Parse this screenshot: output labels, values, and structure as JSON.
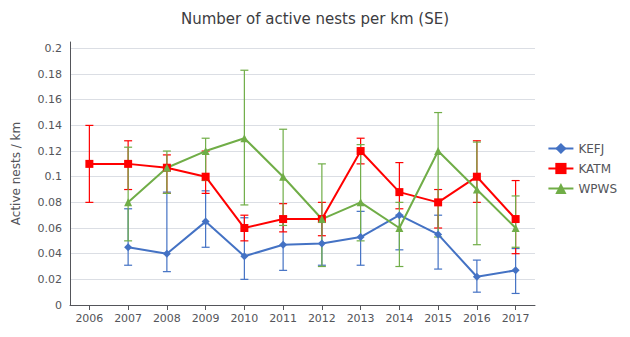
{
  "chart_data": {
    "type": "line",
    "title": "Number of active nests per km (SE)",
    "ylabel": "Active nests / km",
    "x": [
      2006,
      2007,
      2008,
      2009,
      2010,
      2011,
      2012,
      2013,
      2014,
      2015,
      2016,
      2017
    ],
    "xlim": [
      2005.5,
      2017.5
    ],
    "xticks": [
      2006,
      2007,
      2008,
      2009,
      2010,
      2011,
      2012,
      2013,
      2014,
      2015,
      2016,
      2017
    ],
    "ylim": [
      0,
      0.205
    ],
    "yticks": [
      0,
      0.02,
      0.04,
      0.06,
      0.08,
      0.1,
      0.12,
      0.14,
      0.16,
      0.18,
      0.2
    ],
    "grid": true,
    "legend": "right",
    "series": [
      {
        "name": "KEFJ",
        "color": "#4472C4",
        "marker": "diamond",
        "values": [
          null,
          0.045,
          0.04,
          0.065,
          0.038,
          0.047,
          0.048,
          0.053,
          0.07,
          0.055,
          0.022,
          0.027
        ],
        "err_lo": [
          null,
          0.014,
          0.014,
          0.02,
          0.018,
          0.02,
          0.017,
          0.022,
          0.027,
          0.027,
          0.012,
          0.018
        ],
        "err_hi": [
          null,
          0.03,
          0.048,
          0.024,
          0.03,
          0.022,
          0.02,
          0.02,
          0.0,
          0.015,
          0.013,
          0.017
        ]
      },
      {
        "name": "KATM",
        "color": "#FF0000",
        "marker": "square",
        "values": [
          0.11,
          0.11,
          0.107,
          0.1,
          0.06,
          0.067,
          0.067,
          0.12,
          0.088,
          0.08,
          0.1,
          0.067
        ],
        "err_lo": [
          0.03,
          0.02,
          0.02,
          0.013,
          0.01,
          0.01,
          0.013,
          0.01,
          0.013,
          0.02,
          0.02,
          0.027
        ],
        "err_hi": [
          0.03,
          0.018,
          0.01,
          0.02,
          0.01,
          0.012,
          0.013,
          0.01,
          0.023,
          0.01,
          0.028,
          0.03
        ]
      },
      {
        "name": "WPWS",
        "color": "#70AD47",
        "marker": "triangle",
        "values": [
          null,
          0.08,
          0.107,
          0.12,
          0.13,
          0.1,
          0.067,
          0.08,
          0.06,
          0.12,
          0.09,
          0.06
        ],
        "err_lo": [
          null,
          0.03,
          0.02,
          0.023,
          0.052,
          0.038,
          0.037,
          0.03,
          0.03,
          0.067,
          0.043,
          0.015
        ],
        "err_hi": [
          null,
          0.043,
          0.013,
          0.01,
          0.053,
          0.037,
          0.043,
          0.045,
          0.02,
          0.03,
          0.037,
          0.025
        ]
      }
    ]
  }
}
